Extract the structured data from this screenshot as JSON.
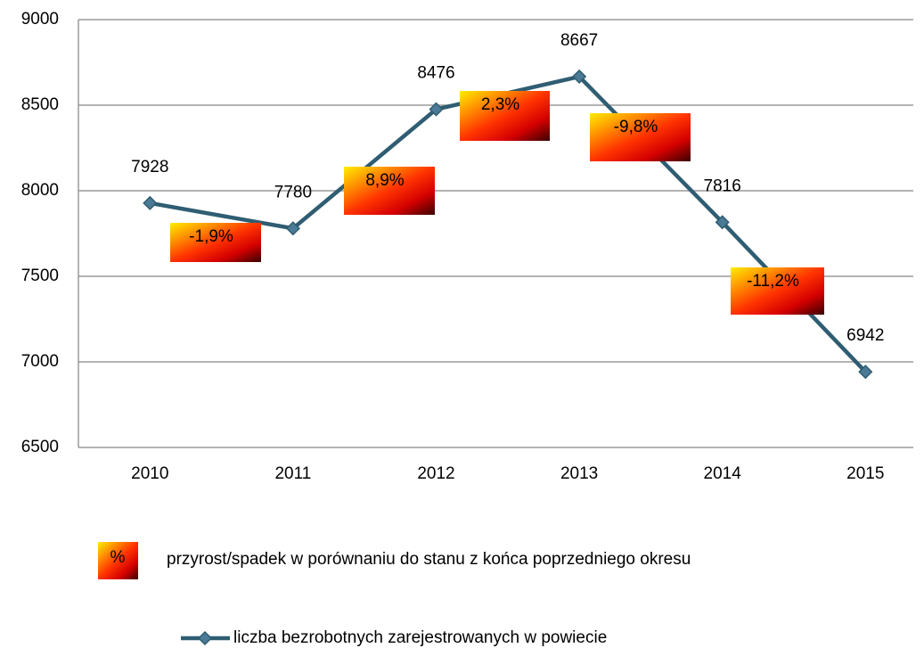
{
  "chart_data": {
    "type": "line",
    "categories": [
      "2010",
      "2011",
      "2012",
      "2013",
      "2014",
      "2015"
    ],
    "series": [
      {
        "name": "liczba bezrobotnych zarejestrowanych w powiecie",
        "color": "#2f5d72",
        "values": [
          7928,
          7780,
          8476,
          8667,
          7816,
          6942
        ]
      }
    ],
    "ylim": [
      6500,
      9000
    ],
    "yticks": [
      6500,
      7000,
      7500,
      8000,
      8500,
      9000
    ],
    "grid": true,
    "annotations": [
      "-1,9%",
      "8,9%",
      "2,3%",
      "-9,8%",
      "-11,2%"
    ],
    "annotation_legend": {
      "symbol": "%",
      "text": "przyrost/spadek w porównaniu do stanu z końca poprzedniego okresu"
    }
  }
}
